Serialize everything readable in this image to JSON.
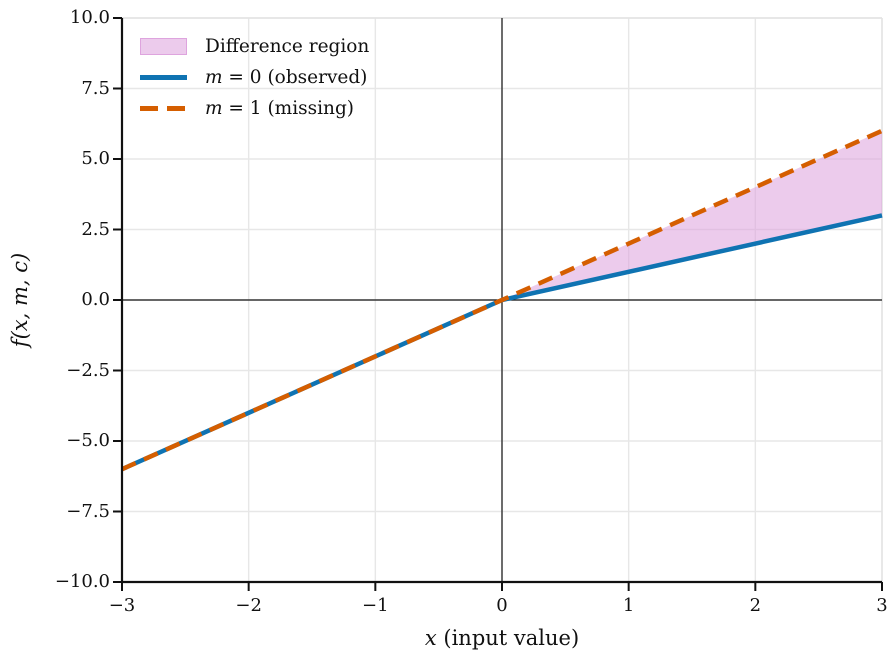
{
  "chart_data": {
    "type": "line",
    "title": "",
    "xlabel_var": "x",
    "xlabel_rest": " (input value)",
    "ylabel": "f(x, m, c)",
    "xlim": [
      -3,
      3
    ],
    "ylim": [
      -10,
      10
    ],
    "grid": true,
    "zero_lines": true,
    "legend_position": "upper left",
    "xticks": [
      -3,
      -2,
      -1,
      0,
      1,
      2,
      3
    ],
    "xtick_labels": [
      "−3",
      "−2",
      "−1",
      "0",
      "1",
      "2",
      "3"
    ],
    "yticks": [
      10,
      7.5,
      5,
      2.5,
      0,
      -2.5,
      -5,
      -7.5,
      -10
    ],
    "ytick_labels": [
      "10.0",
      "7.5",
      "5.0",
      "2.5",
      "0.0",
      "−2.5",
      "−5.0",
      "−7.5",
      "−10.0"
    ],
    "series": [
      {
        "name": "m = 0 (observed)",
        "x": [
          -3,
          0,
          3
        ],
        "y": [
          -6,
          0,
          3
        ],
        "color": "#0f73b2",
        "style": "solid",
        "width": 4.5
      },
      {
        "name": "m = 1 (missing)",
        "x": [
          -3,
          3
        ],
        "y": [
          -6,
          6
        ],
        "color": "#d55e00",
        "style": "dashed",
        "width": 4.5
      }
    ],
    "fill_between": {
      "name": "Difference region",
      "x": [
        0,
        3
      ],
      "lower": [
        0,
        3
      ],
      "upper": [
        0,
        6
      ],
      "color": "#dda0dd",
      "opacity": 0.55
    }
  },
  "legend": {
    "items": [
      {
        "label": "Difference region",
        "swatch": "patch"
      },
      {
        "var": "m",
        "rest": " = 0 (observed)",
        "swatch": "solid-line"
      },
      {
        "var": "m",
        "rest": " = 1 (missing)",
        "swatch": "dashed-line"
      }
    ]
  },
  "colors": {
    "observed_blue": "#0f73b2",
    "missing_orange": "#d55e00",
    "fill_plum": "#dda0dd",
    "grid_gray": "#e7e7e7",
    "spine_light": "#e3e3e3",
    "axis_black": "#111111"
  }
}
